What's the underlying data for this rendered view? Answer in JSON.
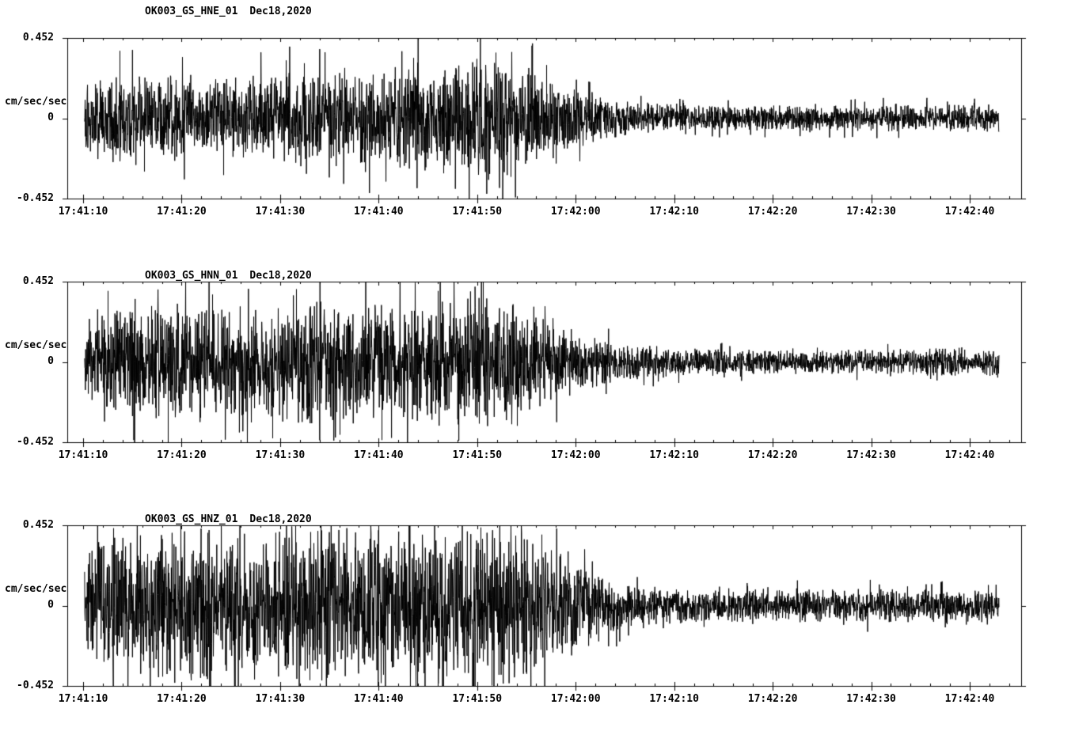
{
  "colors": {
    "background": "#ffffff",
    "foreground": "#000000",
    "trace": "#000000"
  },
  "chart_data": [
    {
      "type": "line",
      "kind": "seismogram",
      "station": "OK003_GS_HNE_01",
      "date": "Dec18,2020",
      "ylabel": "cm/sec/sec",
      "ylim": [
        -0.452,
        0.452
      ],
      "ytick_labels": [
        "0.452",
        "0",
        "-0.452"
      ],
      "xtick_labels": [
        "17:41:10",
        "17:41:20",
        "17:41:30",
        "17:41:40",
        "17:41:50",
        "17:42:00",
        "17:42:10",
        "17:42:20",
        "17:42:30",
        "17:42:40"
      ],
      "xtick_interval_seconds": 10,
      "time_span_seconds": 93,
      "grid": false,
      "legend": "none",
      "envelope": [
        [
          0,
          0.1
        ],
        [
          1,
          0.15
        ],
        [
          3,
          0.16
        ],
        [
          8,
          0.16
        ],
        [
          12,
          0.15
        ],
        [
          16,
          0.15
        ],
        [
          20,
          0.16
        ],
        [
          24,
          0.17
        ],
        [
          28,
          0.17
        ],
        [
          32,
          0.18
        ],
        [
          36,
          0.19
        ],
        [
          40,
          0.21
        ],
        [
          43,
          0.21
        ],
        [
          46,
          0.17
        ],
        [
          48,
          0.14
        ],
        [
          50,
          0.11
        ],
        [
          52,
          0.085
        ],
        [
          54,
          0.07
        ],
        [
          57,
          0.058
        ],
        [
          60,
          0.05
        ],
        [
          65,
          0.046
        ],
        [
          70,
          0.044
        ],
        [
          74,
          0.05
        ],
        [
          78,
          0.044
        ],
        [
          82,
          0.05
        ],
        [
          86,
          0.046
        ],
        [
          90,
          0.047
        ],
        [
          93,
          0.048
        ]
      ],
      "spikes": [
        [
          3.7,
          0.38
        ],
        [
          6.2,
          -0.3
        ],
        [
          14.2,
          -0.32
        ],
        [
          22.4,
          0.31
        ],
        [
          33.5,
          0.34
        ],
        [
          36.6,
          -0.31
        ],
        [
          41.9,
          0.37
        ],
        [
          43.4,
          -0.33
        ],
        [
          47.0,
          0.3
        ]
      ],
      "seed": 101
    },
    {
      "type": "line",
      "kind": "seismogram",
      "station": "OK003_GS_HNN_01",
      "date": "Dec18,2020",
      "ylabel": "cm/sec/sec",
      "ylim": [
        -0.452,
        0.452
      ],
      "ytick_labels": [
        "0.452",
        "0",
        "-0.452"
      ],
      "xtick_labels": [
        "17:41:10",
        "17:41:20",
        "17:41:30",
        "17:41:40",
        "17:41:50",
        "17:42:00",
        "17:42:10",
        "17:42:20",
        "17:42:30",
        "17:42:40"
      ],
      "xtick_interval_seconds": 10,
      "time_span_seconds": 93,
      "grid": false,
      "legend": "none",
      "envelope": [
        [
          0,
          0.12
        ],
        [
          1,
          0.18
        ],
        [
          3,
          0.2
        ],
        [
          6,
          0.21
        ],
        [
          10,
          0.21
        ],
        [
          14,
          0.2
        ],
        [
          18,
          0.21
        ],
        [
          22,
          0.22
        ],
        [
          26,
          0.22
        ],
        [
          30,
          0.22
        ],
        [
          34,
          0.23
        ],
        [
          38,
          0.23
        ],
        [
          41,
          0.24
        ],
        [
          44,
          0.21
        ],
        [
          46,
          0.18
        ],
        [
          48,
          0.15
        ],
        [
          50,
          0.12
        ],
        [
          52,
          0.09
        ],
        [
          54,
          0.075
        ],
        [
          56,
          0.062
        ],
        [
          58,
          0.055
        ],
        [
          60,
          0.05
        ],
        [
          65,
          0.045
        ],
        [
          70,
          0.042
        ],
        [
          75,
          0.043
        ],
        [
          80,
          0.044
        ],
        [
          85,
          0.05
        ],
        [
          88,
          0.052
        ],
        [
          93,
          0.045
        ]
      ],
      "spikes": [
        [
          2.5,
          0.4
        ],
        [
          8.6,
          -0.452
        ],
        [
          13.1,
          0.38
        ],
        [
          19.2,
          -0.43
        ],
        [
          21.6,
          0.41
        ],
        [
          26.0,
          -0.41
        ],
        [
          30.3,
          -0.44
        ],
        [
          36.0,
          0.4
        ],
        [
          40.6,
          0.452
        ],
        [
          44.0,
          -0.36
        ]
      ],
      "seed": 202
    },
    {
      "type": "line",
      "kind": "seismogram",
      "station": "OK003_GS_HNZ_01",
      "date": "Dec18,2020",
      "ylabel": "cm/sec/sec",
      "ylim": [
        -0.452,
        0.452
      ],
      "ytick_labels": [
        "0.452",
        "0",
        "-0.452"
      ],
      "xtick_labels": [
        "17:41:10",
        "17:41:20",
        "17:41:30",
        "17:41:40",
        "17:41:50",
        "17:42:00",
        "17:42:10",
        "17:42:20",
        "17:42:30",
        "17:42:40"
      ],
      "xtick_interval_seconds": 10,
      "time_span_seconds": 93,
      "grid": false,
      "legend": "none",
      "envelope": [
        [
          0,
          0.14
        ],
        [
          1,
          0.22
        ],
        [
          3,
          0.25
        ],
        [
          6,
          0.26
        ],
        [
          10,
          0.27
        ],
        [
          15,
          0.27
        ],
        [
          20,
          0.28
        ],
        [
          25,
          0.28
        ],
        [
          30,
          0.28
        ],
        [
          35,
          0.28
        ],
        [
          38,
          0.27
        ],
        [
          42,
          0.27
        ],
        [
          45,
          0.25
        ],
        [
          48,
          0.22
        ],
        [
          50,
          0.17
        ],
        [
          52,
          0.12
        ],
        [
          53,
          0.1
        ],
        [
          55,
          0.08
        ],
        [
          57,
          0.07
        ],
        [
          60,
          0.062
        ],
        [
          64,
          0.058
        ],
        [
          68,
          0.06
        ],
        [
          72,
          0.058
        ],
        [
          76,
          0.06
        ],
        [
          80,
          0.062
        ],
        [
          84,
          0.06
        ],
        [
          88,
          0.062
        ],
        [
          93,
          0.058
        ]
      ],
      "spikes": [
        [
          8.0,
          -0.4
        ],
        [
          12.6,
          0.41
        ],
        [
          21.5,
          0.452
        ],
        [
          23.0,
          -0.42
        ],
        [
          30.0,
          0.43
        ],
        [
          33.2,
          -0.43
        ],
        [
          39.6,
          -0.452
        ],
        [
          40.3,
          0.44
        ],
        [
          41.5,
          -0.45
        ],
        [
          46.5,
          0.4
        ]
      ],
      "seed": 303
    }
  ]
}
